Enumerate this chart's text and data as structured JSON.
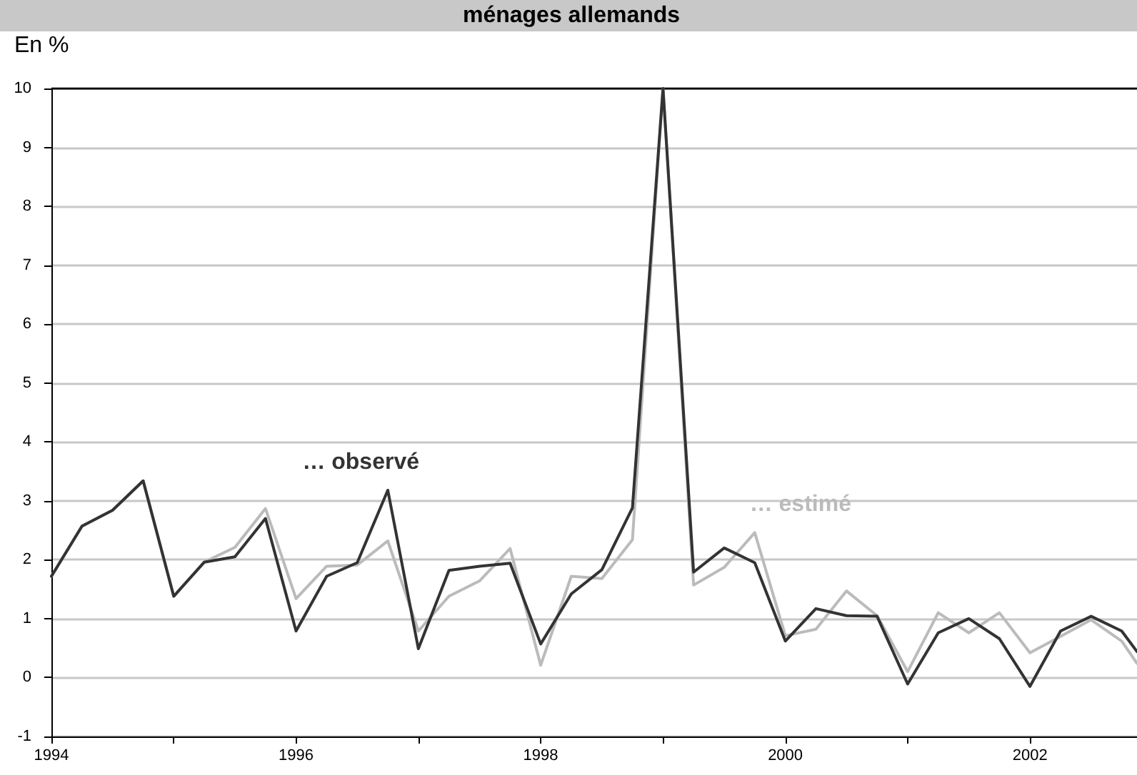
{
  "chart_data": {
    "type": "line",
    "title": "ménages allemands",
    "ylabel": "En %",
    "x": [
      1994,
      1994.25,
      1994.5,
      1994.75,
      1995,
      1995.25,
      1995.5,
      1995.75,
      1996,
      1996.25,
      1996.5,
      1996.75,
      1997,
      1997.25,
      1997.5,
      1997.75,
      1998,
      1998.25,
      1998.5,
      1998.75,
      1999,
      1999.25,
      1999.5,
      1999.75,
      2000,
      2000.25,
      2000.5,
      2000.75,
      2001,
      2001.25,
      2001.5,
      2001.75,
      2002,
      2002.25,
      2002.5,
      2002.75,
      2002.875
    ],
    "series": [
      {
        "color": "#333333",
        "values": [
          1.72,
          2.57,
          2.84,
          3.34,
          1.38,
          1.96,
          2.05,
          2.7,
          0.79,
          1.72,
          1.95,
          3.18,
          0.49,
          1.82,
          1.89,
          1.94,
          0.57,
          1.42,
          1.83,
          2.88,
          10,
          1.79,
          2.2,
          1.95,
          0.62,
          1.17,
          1.05,
          1.04,
          -0.11,
          0.76,
          1,
          0.66,
          -0.15,
          0.79,
          1.04,
          0.79,
          0.44
        ]
      },
      {
        "color": "#bbbbbb",
        "values": [
          1.72,
          2.57,
          2.84,
          3.34,
          1.38,
          1.96,
          2.21,
          2.87,
          1.34,
          1.89,
          1.91,
          2.32,
          0.79,
          1.38,
          1.64,
          2.19,
          0.21,
          1.72,
          1.68,
          2.34,
          10,
          1.57,
          1.87,
          2.46,
          0.71,
          0.82,
          1.47,
          1.05,
          0.1,
          1.1,
          0.76,
          1.1,
          0.42,
          0.7,
          0.98,
          0.62,
          0.24
        ]
      }
    ],
    "annotations": [
      "… observé",
      "… estimé"
    ],
    "xlim": [
      1994,
      2002.875
    ],
    "xticks": [
      1994,
      {
        "value": 1995,
        "label": null
      },
      1996,
      {
        "value": 1997,
        "label": null
      },
      1998,
      {
        "value": 1999,
        "label": null
      },
      2000,
      {
        "value": 2001,
        "label": null
      },
      2002
    ],
    "ylim": [
      -1,
      10
    ],
    "yticks": [
      -1,
      0,
      1,
      2,
      3,
      4,
      5,
      6,
      7,
      8,
      9,
      10
    ],
    "grid": "y",
    "marker": "none",
    "line_style": "solid"
  }
}
